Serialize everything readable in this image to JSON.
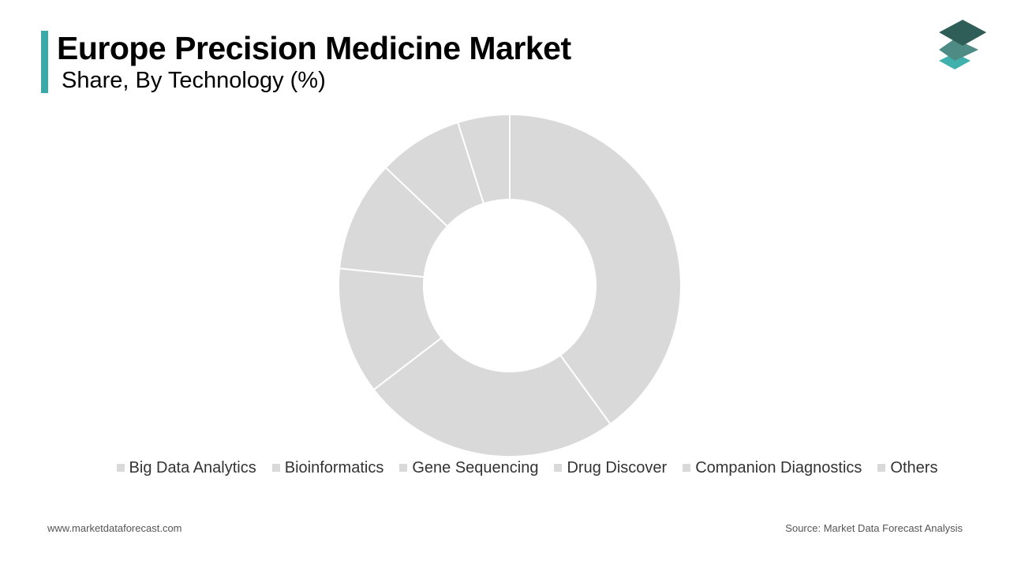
{
  "header": {
    "title": "Europe Precision Medicine Market",
    "subtitle": "Share, By Technology (%)"
  },
  "colors": {
    "accent": "#3aa9a8",
    "logo_top": "#2f5e58",
    "logo_middle": "#4f8b85",
    "logo_bottom": "#3fb0ab",
    "slice": "#d9d9d9",
    "slice_border": "#ffffff"
  },
  "logo": {
    "icon": "stacked-layers-icon"
  },
  "chart_data": {
    "type": "pie",
    "variant": "donut",
    "title": "Europe Precision Medicine Market",
    "subtitle": "Share, By Technology (%)",
    "categories": [
      "Big Data Analytics",
      "Bioinformatics",
      "Gene Sequencing",
      "Drug Discover",
      "Companion Diagnostics",
      "Others"
    ],
    "values": [
      40.0,
      24.6,
      12.0,
      10.5,
      8.0,
      4.9
    ],
    "legend_position": "bottom",
    "data_labels": false
  },
  "footer": {
    "website": "www.marketdataforecast.com",
    "source": "Source: Market Data Forecast Analysis"
  }
}
